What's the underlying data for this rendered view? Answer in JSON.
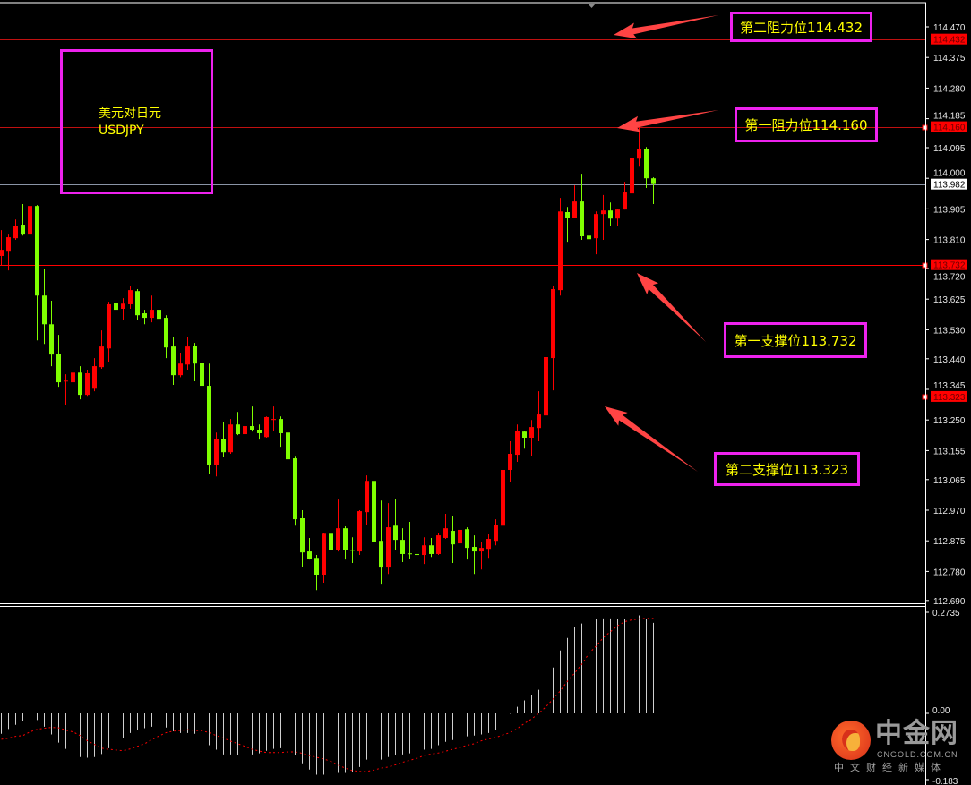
{
  "info_box": {
    "title_cn": "美元对日元",
    "symbol": "USDJPY"
  },
  "colors": {
    "up": "#ff0000",
    "down": "#80ff00",
    "level_line": "#c01010",
    "support_line": "#ff0000",
    "bid_line": "#8a94a6",
    "box_border": "#ee22ee",
    "label_text": "#ffff00",
    "arrow": "#ff4444",
    "macd_hist": "#d0d0d0",
    "macd_signal": "#ff0000"
  },
  "annotations": [
    {
      "label": "第二阻力位114.432",
      "price": 114.432
    },
    {
      "label": "第一阻力位114.160",
      "price": 114.16
    },
    {
      "label": "第一支撑位113.732",
      "price": 113.732
    },
    {
      "label": "第二支撑位113.323",
      "price": 113.323
    }
  ],
  "chart_data": [
    {
      "type": "candlestick",
      "title": "",
      "up_color": "red",
      "down_color": "green",
      "ylim": [
        112.69,
        114.49
      ],
      "y_ticks": [
        "114.470",
        "114.375",
        "114.280",
        "114.185",
        "114.095",
        "114.000",
        "113.905",
        "113.810",
        "113.720",
        "113.625",
        "113.530",
        "113.440",
        "113.345",
        "113.250",
        "113.155",
        "113.065",
        "112.970",
        "112.875",
        "112.780",
        "112.690"
      ],
      "highlighted_prices": [
        {
          "value": "114.432",
          "style": "red"
        },
        {
          "value": "114.160",
          "style": "red"
        },
        {
          "value": "113.982",
          "style": "white"
        },
        {
          "value": "113.732",
          "style": "red"
        },
        {
          "value": "113.323",
          "style": "red"
        }
      ],
      "horizontal_lines": [
        114.432,
        114.16,
        113.982,
        113.732,
        113.323
      ],
      "ohlc_fields": [
        "open",
        "high",
        "low",
        "close"
      ],
      "ohlc": [
        [
          113.759,
          113.839,
          113.731,
          113.778
        ],
        [
          113.775,
          113.828,
          113.714,
          113.817
        ],
        [
          113.814,
          113.872,
          113.809,
          113.853
        ],
        [
          113.856,
          113.92,
          113.822,
          113.828
        ],
        [
          113.828,
          114.031,
          113.767,
          113.914
        ],
        [
          113.914,
          113.917,
          113.497,
          113.636
        ],
        [
          113.636,
          113.72,
          113.486,
          113.547
        ],
        [
          113.547,
          113.62,
          113.417,
          113.453
        ],
        [
          113.456,
          113.514,
          113.353,
          113.367
        ],
        [
          113.37,
          113.392,
          113.297,
          113.372
        ],
        [
          113.367,
          113.403,
          113.331,
          113.397
        ],
        [
          113.397,
          113.417,
          113.314,
          113.328
        ],
        [
          113.328,
          113.406,
          113.325,
          113.395
        ],
        [
          113.347,
          113.442,
          113.339,
          113.417
        ],
        [
          113.414,
          113.528,
          113.409,
          113.478
        ],
        [
          113.472,
          113.617,
          113.431,
          113.609
        ],
        [
          113.614,
          113.636,
          113.55,
          113.592
        ],
        [
          113.595,
          113.628,
          113.559,
          113.611
        ],
        [
          113.609,
          113.667,
          113.595,
          113.653
        ],
        [
          113.65,
          113.656,
          113.559,
          113.575
        ],
        [
          113.581,
          113.592,
          113.547,
          113.567
        ],
        [
          113.567,
          113.636,
          113.553,
          113.592
        ],
        [
          113.592,
          113.614,
          113.522,
          113.564
        ],
        [
          113.567,
          113.575,
          113.442,
          113.475
        ],
        [
          113.478,
          113.506,
          113.359,
          113.389
        ],
        [
          113.389,
          113.459,
          113.383,
          113.425
        ],
        [
          113.422,
          113.506,
          113.406,
          113.478
        ],
        [
          113.481,
          113.489,
          113.37,
          113.425
        ],
        [
          113.428,
          113.434,
          113.311,
          113.356
        ],
        [
          113.356,
          113.425,
          113.084,
          113.111
        ],
        [
          113.111,
          113.211,
          113.075,
          113.192
        ],
        [
          113.192,
          113.245,
          113.134,
          113.15
        ],
        [
          113.15,
          113.253,
          113.145,
          113.236
        ],
        [
          113.236,
          113.275,
          113.203,
          113.206
        ],
        [
          113.206,
          113.239,
          113.192,
          113.231
        ],
        [
          113.231,
          113.292,
          113.214,
          113.22
        ],
        [
          113.22,
          113.236,
          113.189,
          113.209
        ],
        [
          113.197,
          113.261,
          113.195,
          113.259
        ],
        [
          113.25,
          113.292,
          113.217,
          113.253
        ],
        [
          113.253,
          113.261,
          113.167,
          113.209
        ],
        [
          113.211,
          113.236,
          113.081,
          113.128
        ],
        [
          113.131,
          113.136,
          112.922,
          112.942
        ],
        [
          112.945,
          112.97,
          112.795,
          112.839
        ],
        [
          112.842,
          112.884,
          112.817,
          112.82
        ],
        [
          112.822,
          112.831,
          112.722,
          112.77
        ],
        [
          112.77,
          112.9,
          112.745,
          112.897
        ],
        [
          112.897,
          112.92,
          112.806,
          112.847
        ],
        [
          112.847,
          113.003,
          112.842,
          112.914
        ],
        [
          112.914,
          112.92,
          112.817,
          112.847
        ],
        [
          112.847,
          112.886,
          112.806,
          112.845
        ],
        [
          112.842,
          112.97,
          112.831,
          112.967
        ],
        [
          112.964,
          113.078,
          112.925,
          113.061
        ],
        [
          113.061,
          113.114,
          112.831,
          112.872
        ],
        [
          112.875,
          113.0,
          112.739,
          112.792
        ],
        [
          112.792,
          112.992,
          112.772,
          112.917
        ],
        [
          112.922,
          113.006,
          112.847,
          112.878
        ],
        [
          112.878,
          112.914,
          112.809,
          112.834
        ],
        [
          112.836,
          112.934,
          112.82,
          112.834
        ],
        [
          112.834,
          112.892,
          112.825,
          112.831
        ],
        [
          112.831,
          112.886,
          112.803,
          112.861
        ],
        [
          112.861,
          112.884,
          112.825,
          112.834
        ],
        [
          112.834,
          112.9,
          112.831,
          112.892
        ],
        [
          112.884,
          112.959,
          112.881,
          112.914
        ],
        [
          112.906,
          112.953,
          112.806,
          112.864
        ],
        [
          112.867,
          112.925,
          112.806,
          112.909
        ],
        [
          112.911,
          112.917,
          112.817,
          112.853
        ],
        [
          112.856,
          112.892,
          112.772,
          112.842
        ],
        [
          112.842,
          112.87,
          112.786,
          112.853
        ],
        [
          112.85,
          112.895,
          112.822,
          112.881
        ],
        [
          112.875,
          112.942,
          112.861,
          112.925
        ],
        [
          112.922,
          113.136,
          112.909,
          113.095
        ],
        [
          113.095,
          113.184,
          113.058,
          113.145
        ],
        [
          113.142,
          113.236,
          113.12,
          113.217
        ],
        [
          113.214,
          113.217,
          113.161,
          113.195
        ],
        [
          113.195,
          113.25,
          113.139,
          113.228
        ],
        [
          113.225,
          113.339,
          113.184,
          113.267
        ],
        [
          113.264,
          113.492,
          113.209,
          113.445
        ],
        [
          113.442,
          113.667,
          113.342,
          113.656
        ],
        [
          113.653,
          113.939,
          113.636,
          113.897
        ],
        [
          113.895,
          113.911,
          113.803,
          113.878
        ],
        [
          113.878,
          113.978,
          113.878,
          113.928
        ],
        [
          113.928,
          114.014,
          113.809,
          113.82
        ],
        [
          113.822,
          113.858,
          113.731,
          113.811
        ],
        [
          113.814,
          113.897,
          113.764,
          113.889
        ],
        [
          113.889,
          113.948,
          113.809,
          113.9
        ],
        [
          113.9,
          113.925,
          113.853,
          113.875
        ],
        [
          113.875,
          113.906,
          113.853,
          113.903
        ],
        [
          113.903,
          113.989,
          113.903,
          113.956
        ],
        [
          113.953,
          114.089,
          113.945,
          114.064
        ],
        [
          114.061,
          114.159,
          114.036,
          114.092
        ],
        [
          114.092,
          114.097,
          113.97,
          114.0
        ],
        [
          114.0,
          114.003,
          113.92,
          113.982
        ]
      ]
    },
    {
      "type": "bar+line",
      "title": "",
      "ylim": [
        -0.183,
        0.2735
      ],
      "y_ticks": [
        "0.2735",
        "0.00",
        "-0.183"
      ],
      "histogram": [
        -0.055,
        -0.042,
        -0.031,
        -0.021,
        -0.006,
        -0.018,
        -0.036,
        -0.057,
        -0.079,
        -0.096,
        -0.106,
        -0.118,
        -0.12,
        -0.118,
        -0.11,
        -0.094,
        -0.079,
        -0.067,
        -0.053,
        -0.045,
        -0.04,
        -0.036,
        -0.033,
        -0.038,
        -0.048,
        -0.053,
        -0.053,
        -0.055,
        -0.062,
        -0.086,
        -0.098,
        -0.111,
        -0.111,
        -0.113,
        -0.111,
        -0.111,
        -0.108,
        -0.101,
        -0.096,
        -0.094,
        -0.096,
        -0.113,
        -0.135,
        -0.152,
        -0.166,
        -0.166,
        -0.169,
        -0.161,
        -0.161,
        -0.159,
        -0.145,
        -0.125,
        -0.123,
        -0.125,
        -0.118,
        -0.113,
        -0.111,
        -0.108,
        -0.106,
        -0.098,
        -0.096,
        -0.086,
        -0.077,
        -0.072,
        -0.065,
        -0.062,
        -0.06,
        -0.057,
        -0.053,
        -0.045,
        -0.023,
        -0.001,
        0.018,
        0.035,
        0.049,
        0.064,
        0.088,
        0.124,
        0.17,
        0.204,
        0.233,
        0.243,
        0.248,
        0.255,
        0.257,
        0.257,
        0.255,
        0.255,
        0.26,
        0.265,
        0.255,
        0.245
      ],
      "signal": [
        -0.07,
        -0.067,
        -0.062,
        -0.06,
        -0.05,
        -0.043,
        -0.04,
        -0.038,
        -0.039,
        -0.045,
        -0.05,
        -0.06,
        -0.074,
        -0.084,
        -0.094,
        -0.097,
        -0.099,
        -0.101,
        -0.096,
        -0.089,
        -0.082,
        -0.071,
        -0.061,
        -0.052,
        -0.048,
        -0.046,
        -0.044,
        -0.046,
        -0.047,
        -0.052,
        -0.06,
        -0.067,
        -0.075,
        -0.082,
        -0.089,
        -0.097,
        -0.102,
        -0.106,
        -0.106,
        -0.106,
        -0.104,
        -0.104,
        -0.108,
        -0.114,
        -0.119,
        -0.123,
        -0.13,
        -0.14,
        -0.148,
        -0.155,
        -0.157,
        -0.157,
        -0.153,
        -0.148,
        -0.145,
        -0.139,
        -0.132,
        -0.127,
        -0.121,
        -0.114,
        -0.11,
        -0.107,
        -0.102,
        -0.097,
        -0.092,
        -0.086,
        -0.082,
        -0.074,
        -0.069,
        -0.065,
        -0.058,
        -0.052,
        -0.041,
        -0.027,
        -0.015,
        0.0,
        0.018,
        0.039,
        0.061,
        0.087,
        0.109,
        0.133,
        0.162,
        0.182,
        0.205,
        0.221,
        0.237,
        0.248,
        0.253,
        0.256,
        0.257,
        0.257
      ]
    }
  ],
  "logo": {
    "name_cn": "中金网",
    "domain": "CNGOLD.COM.CN",
    "tagline": "中文财经新媒体"
  }
}
